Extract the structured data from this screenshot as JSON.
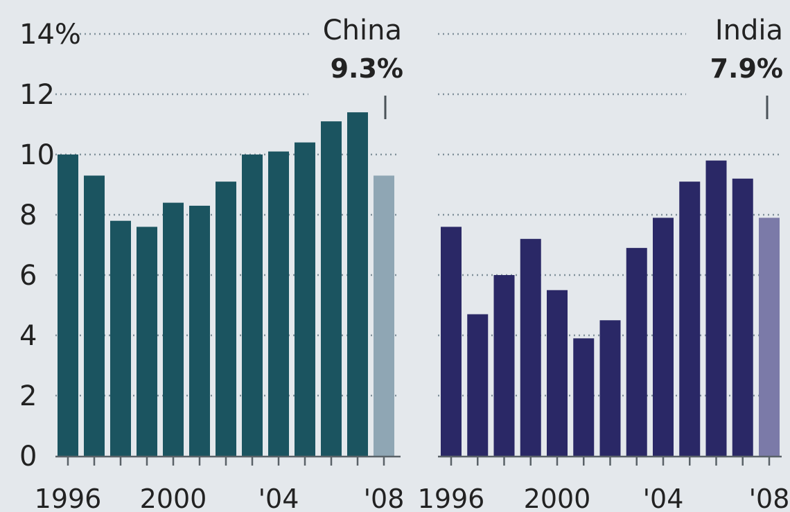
{
  "chart_data": [
    {
      "type": "bar",
      "title": "China",
      "highlight_label": "9.3%",
      "x": [
        1996,
        1997,
        1998,
        1999,
        2000,
        2001,
        2002,
        2003,
        2004,
        2005,
        2006,
        2007,
        2008
      ],
      "values": [
        10.0,
        9.3,
        7.8,
        7.6,
        8.4,
        8.3,
        9.1,
        10.0,
        10.1,
        10.4,
        11.1,
        11.4,
        9.3
      ],
      "x_tick_labels": [
        "1996",
        "2000",
        "'04",
        "'08"
      ],
      "ylim": [
        0,
        14
      ],
      "y_ticks": [
        "14%",
        "12",
        "10",
        "8",
        "6",
        "4",
        "2",
        "0"
      ],
      "grid": true,
      "colors": {
        "bar": "#1b5460",
        "forecast": "#8fa6b4"
      }
    },
    {
      "type": "bar",
      "title": "India",
      "highlight_label": "7.9%",
      "x": [
        1996,
        1997,
        1998,
        1999,
        2000,
        2001,
        2002,
        2003,
        2004,
        2005,
        2006,
        2007,
        2008
      ],
      "values": [
        7.6,
        4.7,
        6.0,
        7.2,
        5.5,
        3.9,
        4.5,
        6.9,
        7.9,
        9.1,
        9.8,
        9.2,
        7.9
      ],
      "x_tick_labels": [
        "1996",
        "2000",
        "'04",
        "'08"
      ],
      "ylim": [
        0,
        14
      ],
      "grid": true,
      "colors": {
        "bar": "#2a2866",
        "forecast": "#7b7aa8"
      }
    }
  ]
}
